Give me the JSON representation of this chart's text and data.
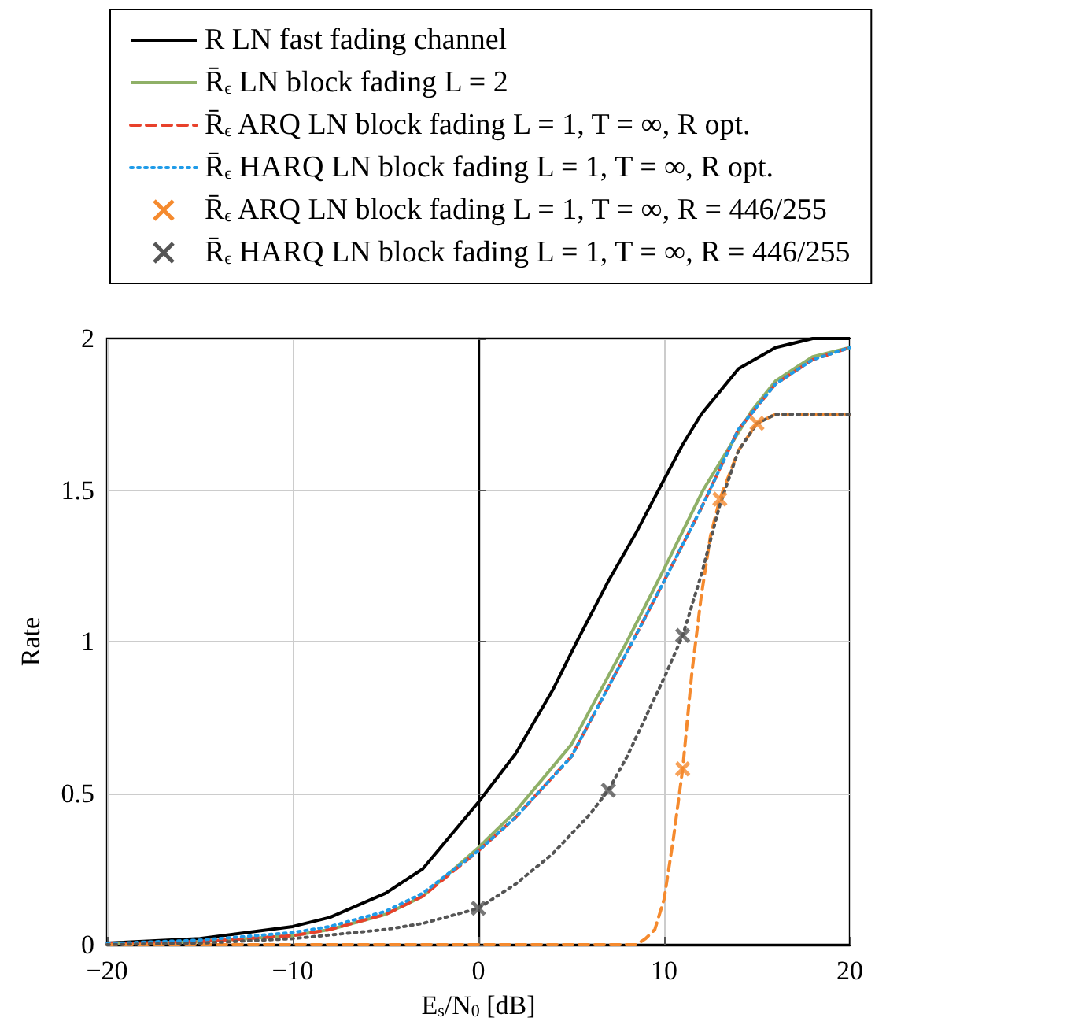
{
  "chart_data": {
    "type": "line",
    "xlabel": "E$_{s}$/N$_{0}$ [dB]",
    "ylabel": "Rate",
    "xlim": [
      -20,
      20
    ],
    "xticks": [
      -20,
      -10,
      0,
      10,
      20
    ],
    "ylim": [
      0,
      2
    ],
    "yticks": [
      0,
      0.5,
      1,
      1.5,
      2
    ],
    "grid": true,
    "legend": "top",
    "series": [
      {
        "name": "R LN fast fading channel",
        "color": "#000000",
        "line_style": "solid",
        "x": [
          -20,
          -15,
          -10,
          -8,
          -5,
          -3,
          0,
          2,
          4,
          5.3,
          7,
          8.5,
          9.7,
          11,
          12,
          14,
          16,
          18,
          20
        ],
        "values": [
          0.005,
          0.02,
          0.06,
          0.09,
          0.17,
          0.25,
          0.47,
          0.63,
          0.84,
          1.0,
          1.2,
          1.36,
          1.5,
          1.65,
          1.75,
          1.9,
          1.97,
          2.0,
          2.0
        ]
      },
      {
        "name": "R̄$_{ϵ}$ LN block fading L = 2",
        "color": "#8fb067",
        "line_style": "solid",
        "x": [
          -20,
          -15,
          -10,
          -8,
          -5,
          -3,
          0,
          2,
          5,
          8,
          10,
          12.1,
          14.7,
          16,
          18,
          20
        ],
        "values": [
          0.003,
          0.01,
          0.03,
          0.05,
          0.1,
          0.16,
          0.32,
          0.44,
          0.66,
          1.0,
          1.24,
          1.5,
          1.76,
          1.86,
          1.94,
          1.97
        ]
      },
      {
        "name": "R̄$_{ϵ}$ ARQ LN block fading L = 1, T = ∞, R opt.",
        "color": "#e8412b",
        "line_style": "dashed",
        "x": [
          -20,
          -15,
          -10,
          -8,
          -5,
          -3,
          0,
          2,
          5,
          8.3,
          10,
          12,
          14,
          16,
          18,
          20
        ],
        "values": [
          0.003,
          0.01,
          0.03,
          0.05,
          0.1,
          0.16,
          0.31,
          0.42,
          0.62,
          1.0,
          1.2,
          1.44,
          1.7,
          1.85,
          1.93,
          1.97
        ]
      },
      {
        "name": "R̄$_{ϵ}$ HARQ LN block fading L = 1, T = ∞, R opt.",
        "color": "#1f9be8",
        "line_style": "dotted",
        "x": [
          -20,
          -15,
          -10,
          -8,
          -5,
          -3,
          0,
          2,
          5,
          8.3,
          10,
          12,
          14,
          16,
          18,
          20
        ],
        "values": [
          0.004,
          0.015,
          0.04,
          0.06,
          0.11,
          0.17,
          0.31,
          0.42,
          0.62,
          1.0,
          1.2,
          1.44,
          1.7,
          1.85,
          1.93,
          1.97
        ]
      },
      {
        "name": "R̄$_{ϵ}$ ARQ LN block fading L = 1, T = ∞, R = 446/255",
        "color": "#f58a2e",
        "line_style": "dashed",
        "x": [
          -20,
          -10,
          0,
          8.5,
          9,
          9.5,
          10,
          10.5,
          11,
          11.5,
          12,
          12.5,
          13,
          14,
          15,
          16,
          18,
          20
        ],
        "values": [
          0,
          0,
          0,
          0,
          0.02,
          0.05,
          0.15,
          0.35,
          0.58,
          0.9,
          1.15,
          1.35,
          1.47,
          1.63,
          1.72,
          1.75,
          1.75,
          1.75
        ]
      },
      {
        "name": "R̄$_{ϵ}$ HARQ LN block fading L = 1, T = ∞, R = 446/255",
        "color": "#555555",
        "line_style": "dotted",
        "x": [
          -20,
          -15,
          -10,
          -5,
          -3,
          0,
          2,
          4,
          6,
          7,
          8,
          9,
          10,
          11,
          12,
          13,
          14,
          15,
          16,
          18,
          20
        ],
        "values": [
          0,
          0.005,
          0.02,
          0.05,
          0.07,
          0.12,
          0.2,
          0.3,
          0.43,
          0.51,
          0.62,
          0.75,
          0.88,
          1.02,
          1.22,
          1.45,
          1.63,
          1.72,
          1.75,
          1.75,
          1.75
        ]
      },
      {
        "type": "scatter",
        "color": "#f58a2e",
        "marker": "cross",
        "x": [
          11,
          13,
          15
        ],
        "values": [
          0.58,
          1.47,
          1.72
        ]
      },
      {
        "type": "scatter",
        "color": "#555555",
        "marker": "cross",
        "x": [
          0,
          7,
          11
        ],
        "values": [
          0.12,
          0.51,
          1.02
        ]
      }
    ]
  }
}
